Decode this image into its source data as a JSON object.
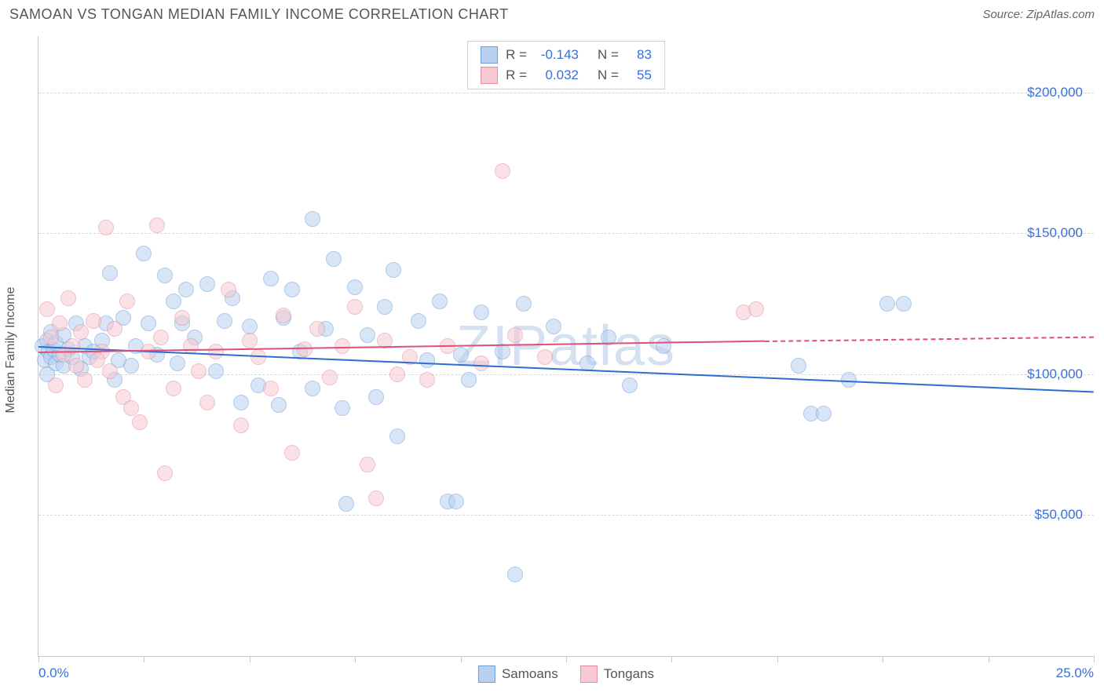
{
  "header": {
    "title": "SAMOAN VS TONGAN MEDIAN FAMILY INCOME CORRELATION CHART",
    "source": "Source: ZipAtlas.com"
  },
  "chart": {
    "type": "scatter",
    "watermark": "ZIPatlas",
    "ylabel": "Median Family Income",
    "xlim": [
      0,
      25
    ],
    "ylim": [
      0,
      220000
    ],
    "x_ticks": [
      0,
      2.5,
      5,
      7.5,
      10,
      12.5,
      15,
      17.5,
      20,
      22.5,
      25
    ],
    "x_tick_labels": {
      "0": "0.0%",
      "25": "25.0%"
    },
    "y_gridlines": [
      50000,
      100000,
      150000,
      200000
    ],
    "y_tick_labels": {
      "50000": "$50,000",
      "100000": "$100,000",
      "150000": "$150,000",
      "200000": "$200,000"
    },
    "background_color": "#ffffff",
    "grid_color": "#d9d9d9",
    "axis_color": "#c9c9c9",
    "tick_label_color": "#3b6fd6",
    "marker_radius": 10,
    "marker_opacity": 0.55,
    "series": [
      {
        "name": "Samoans",
        "color_fill": "#b8d1f0",
        "color_stroke": "#6f9fd8",
        "line_color": "#2f6ed0",
        "R": "-0.143",
        "N": "83",
        "reg_start": {
          "x": 0,
          "y": 110000
        },
        "reg_end_solid": {
          "x": 25,
          "y": 94000
        },
        "points": [
          {
            "x": 0.1,
            "y": 110000
          },
          {
            "x": 0.15,
            "y": 105000
          },
          {
            "x": 0.2,
            "y": 112000
          },
          {
            "x": 0.2,
            "y": 100000
          },
          {
            "x": 0.25,
            "y": 108000
          },
          {
            "x": 0.3,
            "y": 106000
          },
          {
            "x": 0.3,
            "y": 115000
          },
          {
            "x": 0.35,
            "y": 109000
          },
          {
            "x": 0.4,
            "y": 104000
          },
          {
            "x": 0.4,
            "y": 111000
          },
          {
            "x": 0.5,
            "y": 107000
          },
          {
            "x": 0.6,
            "y": 103000
          },
          {
            "x": 0.6,
            "y": 114000
          },
          {
            "x": 0.7,
            "y": 109000
          },
          {
            "x": 0.8,
            "y": 106000
          },
          {
            "x": 0.9,
            "y": 118000
          },
          {
            "x": 1.0,
            "y": 102000
          },
          {
            "x": 1.1,
            "y": 110000
          },
          {
            "x": 1.2,
            "y": 106000
          },
          {
            "x": 1.3,
            "y": 108000
          },
          {
            "x": 1.5,
            "y": 112000
          },
          {
            "x": 1.6,
            "y": 118000
          },
          {
            "x": 1.7,
            "y": 136000
          },
          {
            "x": 1.8,
            "y": 98000
          },
          {
            "x": 1.9,
            "y": 105000
          },
          {
            "x": 2.0,
            "y": 120000
          },
          {
            "x": 2.2,
            "y": 103000
          },
          {
            "x": 2.3,
            "y": 110000
          },
          {
            "x": 2.5,
            "y": 143000
          },
          {
            "x": 2.6,
            "y": 118000
          },
          {
            "x": 2.8,
            "y": 107000
          },
          {
            "x": 3.0,
            "y": 135000
          },
          {
            "x": 3.2,
            "y": 126000
          },
          {
            "x": 3.3,
            "y": 104000
          },
          {
            "x": 3.4,
            "y": 118000
          },
          {
            "x": 3.5,
            "y": 130000
          },
          {
            "x": 3.7,
            "y": 113000
          },
          {
            "x": 4.0,
            "y": 132000
          },
          {
            "x": 4.2,
            "y": 101000
          },
          {
            "x": 4.4,
            "y": 119000
          },
          {
            "x": 4.6,
            "y": 127000
          },
          {
            "x": 4.8,
            "y": 90000
          },
          {
            "x": 5.0,
            "y": 117000
          },
          {
            "x": 5.2,
            "y": 96000
          },
          {
            "x": 5.5,
            "y": 134000
          },
          {
            "x": 5.7,
            "y": 89000
          },
          {
            "x": 5.8,
            "y": 120000
          },
          {
            "x": 6.0,
            "y": 130000
          },
          {
            "x": 6.2,
            "y": 108000
          },
          {
            "x": 6.5,
            "y": 155000
          },
          {
            "x": 6.5,
            "y": 95000
          },
          {
            "x": 6.8,
            "y": 116000
          },
          {
            "x": 7.0,
            "y": 141000
          },
          {
            "x": 7.2,
            "y": 88000
          },
          {
            "x": 7.3,
            "y": 54000
          },
          {
            "x": 7.5,
            "y": 131000
          },
          {
            "x": 7.8,
            "y": 114000
          },
          {
            "x": 8.0,
            "y": 92000
          },
          {
            "x": 8.2,
            "y": 124000
          },
          {
            "x": 8.4,
            "y": 137000
          },
          {
            "x": 8.5,
            "y": 78000
          },
          {
            "x": 9.0,
            "y": 119000
          },
          {
            "x": 9.2,
            "y": 105000
          },
          {
            "x": 9.5,
            "y": 126000
          },
          {
            "x": 9.7,
            "y": 55000
          },
          {
            "x": 9.9,
            "y": 55000
          },
          {
            "x": 10.0,
            "y": 107000
          },
          {
            "x": 10.2,
            "y": 98000
          },
          {
            "x": 10.5,
            "y": 122000
          },
          {
            "x": 11.0,
            "y": 108000
          },
          {
            "x": 11.3,
            "y": 29000
          },
          {
            "x": 11.5,
            "y": 125000
          },
          {
            "x": 12.2,
            "y": 117000
          },
          {
            "x": 13.0,
            "y": 104000
          },
          {
            "x": 13.5,
            "y": 113000
          },
          {
            "x": 14.8,
            "y": 110000
          },
          {
            "x": 18.0,
            "y": 103000
          },
          {
            "x": 18.3,
            "y": 86000
          },
          {
            "x": 18.6,
            "y": 86000
          },
          {
            "x": 19.2,
            "y": 98000
          },
          {
            "x": 20.1,
            "y": 125000
          },
          {
            "x": 20.5,
            "y": 125000
          },
          {
            "x": 14.0,
            "y": 96000
          }
        ]
      },
      {
        "name": "Tongans",
        "color_fill": "#f6c9d3",
        "color_stroke": "#e38fa3",
        "line_color": "#e04f78",
        "R": "0.032",
        "N": "55",
        "reg_start": {
          "x": 0,
          "y": 108000
        },
        "reg_end_solid": {
          "x": 17.2,
          "y": 112000
        },
        "reg_end_dash": {
          "x": 25,
          "y": 113500
        },
        "points": [
          {
            "x": 0.2,
            "y": 123000
          },
          {
            "x": 0.3,
            "y": 113000
          },
          {
            "x": 0.4,
            "y": 96000
          },
          {
            "x": 0.5,
            "y": 118000
          },
          {
            "x": 0.6,
            "y": 107000
          },
          {
            "x": 0.7,
            "y": 127000
          },
          {
            "x": 0.8,
            "y": 110000
          },
          {
            "x": 0.9,
            "y": 103000
          },
          {
            "x": 1.0,
            "y": 115000
          },
          {
            "x": 1.1,
            "y": 98000
          },
          {
            "x": 1.3,
            "y": 119000
          },
          {
            "x": 1.5,
            "y": 108000
          },
          {
            "x": 1.6,
            "y": 152000
          },
          {
            "x": 1.7,
            "y": 101000
          },
          {
            "x": 1.8,
            "y": 116000
          },
          {
            "x": 2.0,
            "y": 92000
          },
          {
            "x": 2.1,
            "y": 126000
          },
          {
            "x": 2.2,
            "y": 88000
          },
          {
            "x": 2.4,
            "y": 83000
          },
          {
            "x": 2.6,
            "y": 108000
          },
          {
            "x": 2.8,
            "y": 153000
          },
          {
            "x": 2.9,
            "y": 113000
          },
          {
            "x": 3.0,
            "y": 65000
          },
          {
            "x": 3.2,
            "y": 95000
          },
          {
            "x": 3.4,
            "y": 120000
          },
          {
            "x": 3.6,
            "y": 110000
          },
          {
            "x": 3.8,
            "y": 101000
          },
          {
            "x": 4.0,
            "y": 90000
          },
          {
            "x": 4.2,
            "y": 108000
          },
          {
            "x": 4.5,
            "y": 130000
          },
          {
            "x": 4.8,
            "y": 82000
          },
          {
            "x": 5.0,
            "y": 112000
          },
          {
            "x": 5.2,
            "y": 106000
          },
          {
            "x": 5.5,
            "y": 95000
          },
          {
            "x": 5.8,
            "y": 121000
          },
          {
            "x": 6.0,
            "y": 72000
          },
          {
            "x": 6.3,
            "y": 109000
          },
          {
            "x": 6.6,
            "y": 116000
          },
          {
            "x": 6.9,
            "y": 99000
          },
          {
            "x": 7.2,
            "y": 110000
          },
          {
            "x": 7.5,
            "y": 124000
          },
          {
            "x": 7.8,
            "y": 68000
          },
          {
            "x": 8.0,
            "y": 56000
          },
          {
            "x": 8.2,
            "y": 112000
          },
          {
            "x": 8.5,
            "y": 100000
          },
          {
            "x": 8.8,
            "y": 106000
          },
          {
            "x": 9.2,
            "y": 98000
          },
          {
            "x": 9.7,
            "y": 110000
          },
          {
            "x": 10.5,
            "y": 104000
          },
          {
            "x": 11.0,
            "y": 172000
          },
          {
            "x": 11.3,
            "y": 114000
          },
          {
            "x": 12.0,
            "y": 106000
          },
          {
            "x": 16.7,
            "y": 122000
          },
          {
            "x": 17.0,
            "y": 123000
          },
          {
            "x": 1.4,
            "y": 105000
          }
        ]
      }
    ],
    "legend": {
      "items": [
        {
          "label": "Samoans",
          "fill": "#b8d1f0",
          "stroke": "#6f9fd8"
        },
        {
          "label": "Tongans",
          "fill": "#f6c9d3",
          "stroke": "#e38fa3"
        }
      ]
    }
  }
}
